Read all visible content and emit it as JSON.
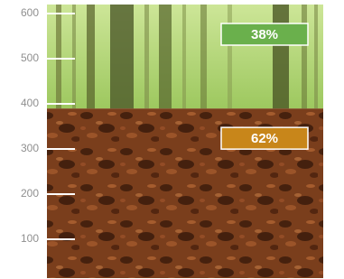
{
  "chart_data": {
    "type": "stacked_column",
    "values": [
      62,
      38
    ],
    "value_labels": [
      "62%",
      "38%"
    ],
    "colors": [
      "#c8861a",
      "#6ab04c"
    ],
    "ylim": [
      14,
      620
    ],
    "yticks": [
      100,
      200,
      300,
      400,
      500,
      600
    ]
  }
}
